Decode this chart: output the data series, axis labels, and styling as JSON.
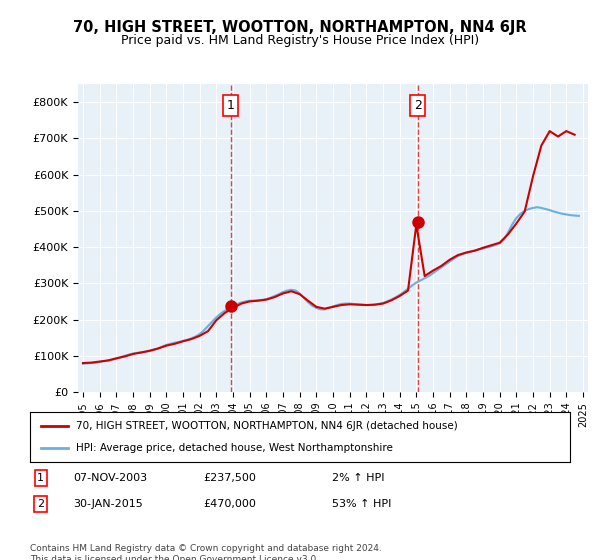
{
  "title": "70, HIGH STREET, WOOTTON, NORTHAMPTON, NN4 6JR",
  "subtitle": "Price paid vs. HM Land Registry's House Price Index (HPI)",
  "ylim": [
    0,
    850000
  ],
  "yticks": [
    0,
    100000,
    200000,
    300000,
    400000,
    500000,
    600000,
    700000,
    800000
  ],
  "ytick_labels": [
    "£0",
    "£100K",
    "£200K",
    "£300K",
    "£400K",
    "£500K",
    "£600K",
    "£700K",
    "£800K"
  ],
  "x_start_year": 1995,
  "x_end_year": 2025,
  "sale1_date": 2003.85,
  "sale1_price": 237500,
  "sale1_label": "1",
  "sale1_annotation": "07-NOV-2003",
  "sale1_price_str": "£237,500",
  "sale1_hpi": "2% ↑ HPI",
  "sale2_date": 2015.08,
  "sale2_price": 470000,
  "sale2_label": "2",
  "sale2_annotation": "30-JAN-2015",
  "sale2_price_str": "£470,000",
  "sale2_hpi": "53% ↑ HPI",
  "hpi_color": "#6ab0de",
  "price_color": "#cc0000",
  "bg_color": "#e8f0f8",
  "grid_color": "#ffffff",
  "legend_line1": "70, HIGH STREET, WOOTTON, NORTHAMPTON, NN4 6JR (detached house)",
  "legend_line2": "HPI: Average price, detached house, West Northamptonshire",
  "footer": "Contains HM Land Registry data © Crown copyright and database right 2024.\nThis data is licensed under the Open Government Licence v3.0.",
  "hpi_data_x": [
    1995,
    1995.25,
    1995.5,
    1995.75,
    1996,
    1996.25,
    1996.5,
    1996.75,
    1997,
    1997.25,
    1997.5,
    1997.75,
    1998,
    1998.25,
    1998.5,
    1998.75,
    1999,
    1999.25,
    1999.5,
    1999.75,
    2000,
    2000.25,
    2000.5,
    2000.75,
    2001,
    2001.25,
    2001.5,
    2001.75,
    2002,
    2002.25,
    2002.5,
    2002.75,
    2003,
    2003.25,
    2003.5,
    2003.75,
    2004,
    2004.25,
    2004.5,
    2004.75,
    2005,
    2005.25,
    2005.5,
    2005.75,
    2006,
    2006.25,
    2006.5,
    2006.75,
    2007,
    2007.25,
    2007.5,
    2007.75,
    2008,
    2008.25,
    2008.5,
    2008.75,
    2009,
    2009.25,
    2009.5,
    2009.75,
    2010,
    2010.25,
    2010.5,
    2010.75,
    2011,
    2011.25,
    2011.5,
    2011.75,
    2012,
    2012.25,
    2012.5,
    2012.75,
    2013,
    2013.25,
    2013.5,
    2013.75,
    2014,
    2014.25,
    2014.5,
    2014.75,
    2015,
    2015.25,
    2015.5,
    2015.75,
    2016,
    2016.25,
    2016.5,
    2016.75,
    2017,
    2017.25,
    2017.5,
    2017.75,
    2018,
    2018.25,
    2018.5,
    2018.75,
    2019,
    2019.25,
    2019.5,
    2019.75,
    2020,
    2020.25,
    2020.5,
    2020.75,
    2021,
    2021.25,
    2021.5,
    2021.75,
    2022,
    2022.25,
    2022.5,
    2022.75,
    2023,
    2023.25,
    2023.5,
    2023.75,
    2024,
    2024.25,
    2024.5,
    2024.75
  ],
  "hpi_data_y": [
    78000,
    79000,
    80000,
    81000,
    83000,
    85000,
    87000,
    89000,
    92000,
    96000,
    100000,
    103000,
    106000,
    108000,
    110000,
    111000,
    113000,
    116000,
    120000,
    125000,
    130000,
    133000,
    136000,
    138000,
    141000,
    144000,
    148000,
    153000,
    160000,
    170000,
    182000,
    194000,
    206000,
    216000,
    224000,
    230000,
    237000,
    243000,
    247000,
    250000,
    252000,
    252000,
    253000,
    254000,
    256000,
    260000,
    265000,
    270000,
    276000,
    280000,
    282000,
    280000,
    272000,
    260000,
    248000,
    238000,
    232000,
    228000,
    228000,
    232000,
    236000,
    240000,
    243000,
    244000,
    244000,
    243000,
    242000,
    241000,
    240000,
    240000,
    241000,
    243000,
    246000,
    250000,
    255000,
    261000,
    268000,
    276000,
    285000,
    294000,
    302000,
    308000,
    314000,
    320000,
    328000,
    336000,
    344000,
    352000,
    360000,
    368000,
    375000,
    380000,
    384000,
    387000,
    390000,
    393000,
    396000,
    399000,
    402000,
    406000,
    410000,
    420000,
    440000,
    462000,
    480000,
    492000,
    500000,
    505000,
    508000,
    510000,
    508000,
    505000,
    502000,
    498000,
    495000,
    492000,
    490000,
    488000,
    487000,
    486000
  ],
  "price_data_x": [
    1995,
    1995.5,
    1996,
    1996.5,
    1997,
    1997.5,
    1998,
    1998.5,
    1999,
    1999.5,
    2000,
    2000.5,
    2001,
    2001.5,
    2002,
    2002.5,
    2003,
    2003.5,
    2004,
    2004.5,
    2005,
    2005.5,
    2006,
    2006.5,
    2007,
    2007.5,
    2008,
    2008.5,
    2009,
    2009.5,
    2010,
    2010.5,
    2011,
    2011.5,
    2012,
    2012.5,
    2013,
    2013.5,
    2014,
    2014.5,
    2015,
    2015.5,
    2016,
    2016.5,
    2017,
    2017.5,
    2018,
    2018.5,
    2019,
    2019.5,
    2020,
    2020.5,
    2021,
    2021.5,
    2022,
    2022.5,
    2023,
    2023.5,
    2024,
    2024.5
  ],
  "price_data_y": [
    80000,
    81000,
    84000,
    87000,
    93000,
    98000,
    105000,
    109000,
    114000,
    120000,
    128000,
    133000,
    140000,
    146000,
    155000,
    168000,
    198000,
    218000,
    232000,
    244000,
    250000,
    252000,
    255000,
    262000,
    272000,
    278000,
    270000,
    252000,
    235000,
    230000,
    235000,
    240000,
    242000,
    241000,
    240000,
    241000,
    244000,
    253000,
    265000,
    280000,
    462000,
    320000,
    335000,
    348000,
    365000,
    378000,
    385000,
    390000,
    398000,
    405000,
    412000,
    435000,
    465000,
    498000,
    595000,
    680000,
    720000,
    705000,
    720000,
    710000
  ]
}
